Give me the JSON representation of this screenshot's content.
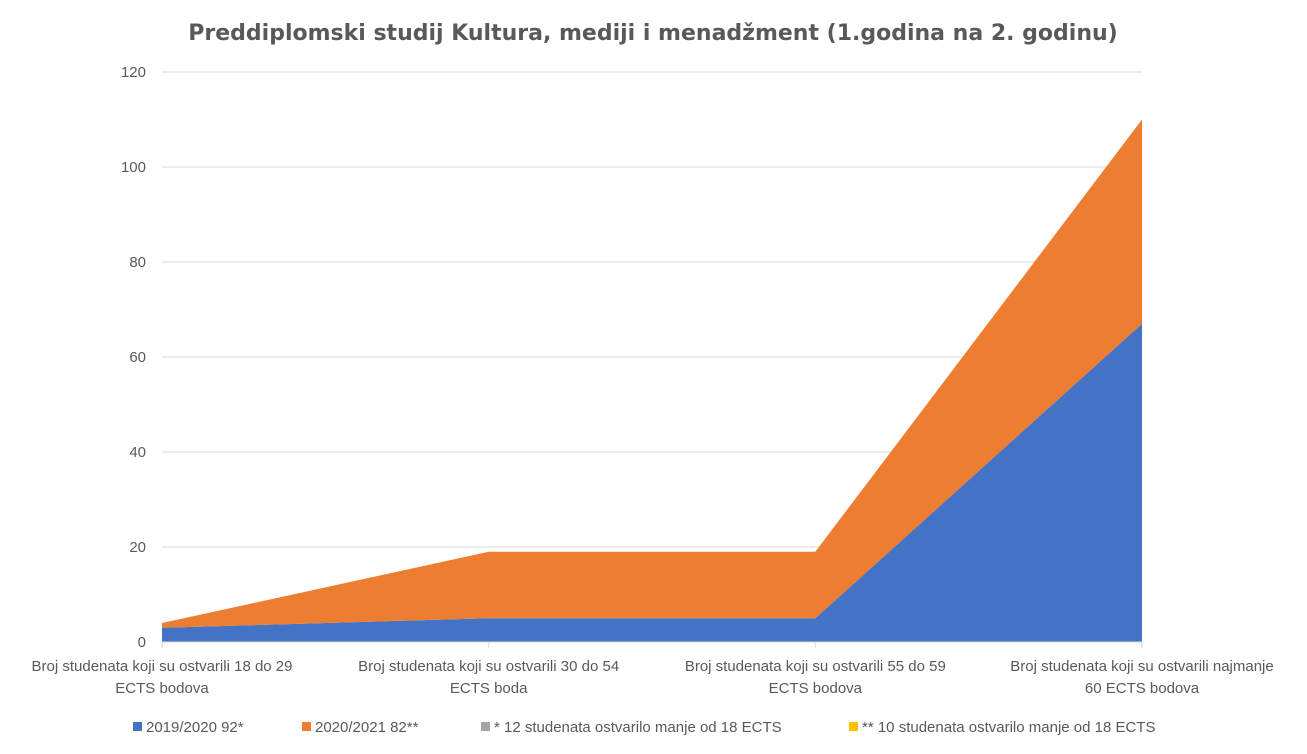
{
  "chart_data": {
    "type": "area",
    "stacked": true,
    "title": "Preddiplomski studij Kultura, mediji i menadžment (1.godina na 2. godinu)",
    "xlabel": "",
    "ylabel": "",
    "ylim": [
      0,
      120
    ],
    "yticks": [
      "0",
      "20",
      "40",
      "60",
      "80",
      "100",
      "120"
    ],
    "grid": true,
    "legend_position": "bottom",
    "categories": [
      [
        "Broj studenata koji su ostvarili 18 do 29",
        "ECTS bodova"
      ],
      [
        "Broj studenata koji su ostvarili 30 do 54",
        "ECTS boda"
      ],
      [
        "Broj studenata koji su ostvarili 55 do 59",
        "ECTS bodova"
      ],
      [
        "Broj studenata koji su ostvarili najmanje",
        "60 ECTS bodova"
      ]
    ],
    "series": [
      {
        "name": "2019/2020 92*",
        "color": "#4472c4",
        "values": [
          3,
          5,
          5,
          67
        ]
      },
      {
        "name": "2020/2021 82**",
        "color": "#ed7d31",
        "values": [
          1,
          14,
          14,
          43
        ]
      },
      {
        "name": "* 12 studenata ostvarilo manje od 18 ECTS",
        "color": "#a5a5a5",
        "values": [
          0,
          0,
          0,
          0
        ]
      },
      {
        "name": "** 10 studenata ostvarilo manje od 18 ECTS",
        "color": "#ffc000",
        "values": [
          0,
          0,
          0,
          0
        ]
      }
    ]
  }
}
